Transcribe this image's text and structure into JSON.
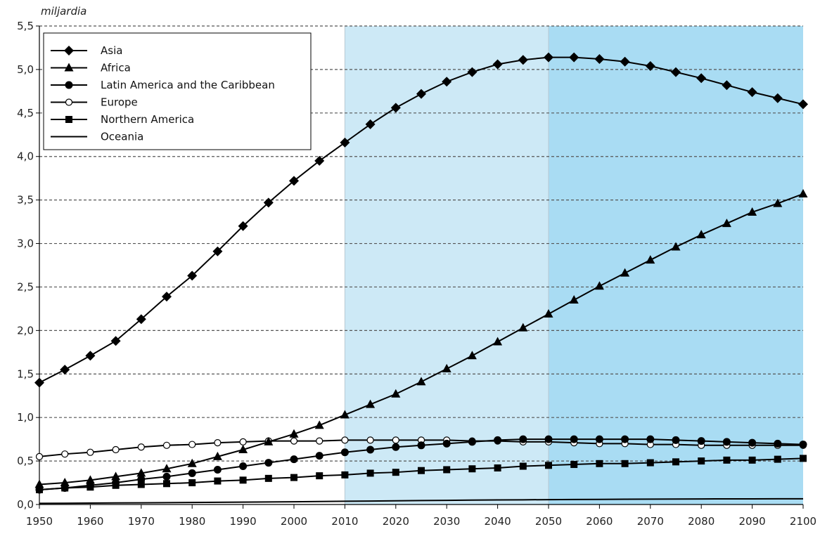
{
  "chart_data": {
    "type": "line",
    "ylabel": "miljardia",
    "xlim": [
      1950,
      2100
    ],
    "ylim": [
      0,
      5.5
    ],
    "x_ticks": [
      "1950",
      "1960",
      "1970",
      "1980",
      "1990",
      "2000",
      "2010",
      "2020",
      "2030",
      "2040",
      "2050",
      "2060",
      "2070",
      "2080",
      "2090",
      "2100"
    ],
    "y_ticks": [
      "0,0",
      "0,5",
      "1,0",
      "1,5",
      "2,0",
      "2,5",
      "3,0",
      "3,5",
      "4,0",
      "4,5",
      "5,0",
      "5,5"
    ],
    "grid": "horizontal dashed",
    "legend_position": "top-left",
    "shaded_ranges": [
      {
        "from": 2010,
        "to": 2050,
        "color": "#cde9f6"
      },
      {
        "from": 2050,
        "to": 2100,
        "color": "#a9dcf3"
      }
    ],
    "x": [
      1950,
      1955,
      1960,
      1965,
      1970,
      1975,
      1980,
      1985,
      1990,
      1995,
      2000,
      2005,
      2010,
      2015,
      2020,
      2025,
      2030,
      2035,
      2040,
      2045,
      2050,
      2055,
      2060,
      2065,
      2070,
      2075,
      2080,
      2085,
      2090,
      2095,
      2100
    ],
    "series": [
      {
        "name": "Asia",
        "marker": "diamond",
        "values": [
          1.4,
          1.55,
          1.71,
          1.88,
          2.13,
          2.39,
          2.63,
          2.91,
          3.2,
          3.47,
          3.72,
          3.95,
          4.16,
          4.37,
          4.56,
          4.72,
          4.86,
          4.97,
          5.06,
          5.11,
          5.14,
          5.14,
          5.12,
          5.09,
          5.04,
          4.97,
          4.9,
          4.82,
          4.74,
          4.67,
          4.6
        ]
      },
      {
        "name": "Africa",
        "marker": "triangle",
        "values": [
          0.23,
          0.25,
          0.28,
          0.32,
          0.36,
          0.41,
          0.47,
          0.55,
          0.63,
          0.72,
          0.81,
          0.91,
          1.03,
          1.15,
          1.27,
          1.41,
          1.56,
          1.71,
          1.87,
          2.03,
          2.19,
          2.35,
          2.51,
          2.66,
          2.81,
          2.96,
          3.1,
          3.23,
          3.36,
          3.46,
          3.57
        ]
      },
      {
        "name": "Latin America and the Caribbean",
        "marker": "circle",
        "values": [
          0.17,
          0.19,
          0.22,
          0.25,
          0.29,
          0.32,
          0.36,
          0.4,
          0.44,
          0.48,
          0.52,
          0.56,
          0.6,
          0.63,
          0.66,
          0.68,
          0.7,
          0.72,
          0.74,
          0.75,
          0.75,
          0.75,
          0.75,
          0.75,
          0.75,
          0.74,
          0.73,
          0.72,
          0.71,
          0.7,
          0.69
        ]
      },
      {
        "name": "Europe",
        "marker": "open-circle",
        "values": [
          0.55,
          0.58,
          0.6,
          0.63,
          0.66,
          0.68,
          0.69,
          0.71,
          0.72,
          0.73,
          0.73,
          0.73,
          0.74,
          0.74,
          0.74,
          0.74,
          0.74,
          0.73,
          0.73,
          0.72,
          0.72,
          0.71,
          0.7,
          0.7,
          0.69,
          0.69,
          0.68,
          0.68,
          0.68,
          0.68,
          0.68
        ]
      },
      {
        "name": "Northern America",
        "marker": "square",
        "values": [
          0.17,
          0.19,
          0.2,
          0.22,
          0.23,
          0.24,
          0.25,
          0.27,
          0.28,
          0.3,
          0.31,
          0.33,
          0.34,
          0.36,
          0.37,
          0.39,
          0.4,
          0.41,
          0.42,
          0.44,
          0.45,
          0.46,
          0.47,
          0.47,
          0.48,
          0.49,
          0.5,
          0.51,
          0.51,
          0.52,
          0.53
        ]
      },
      {
        "name": "Oceania",
        "marker": "none",
        "values": [
          0.013,
          0.014,
          0.016,
          0.018,
          0.019,
          0.021,
          0.023,
          0.025,
          0.027,
          0.029,
          0.031,
          0.034,
          0.037,
          0.039,
          0.042,
          0.045,
          0.047,
          0.05,
          0.052,
          0.054,
          0.056,
          0.058,
          0.059,
          0.061,
          0.062,
          0.063,
          0.064,
          0.065,
          0.065,
          0.066,
          0.066
        ]
      }
    ]
  },
  "colors": {
    "line": "#000000",
    "grid": "#555555",
    "shade_mid": "#cde9f6",
    "shade_far": "#a9dcf3"
  }
}
